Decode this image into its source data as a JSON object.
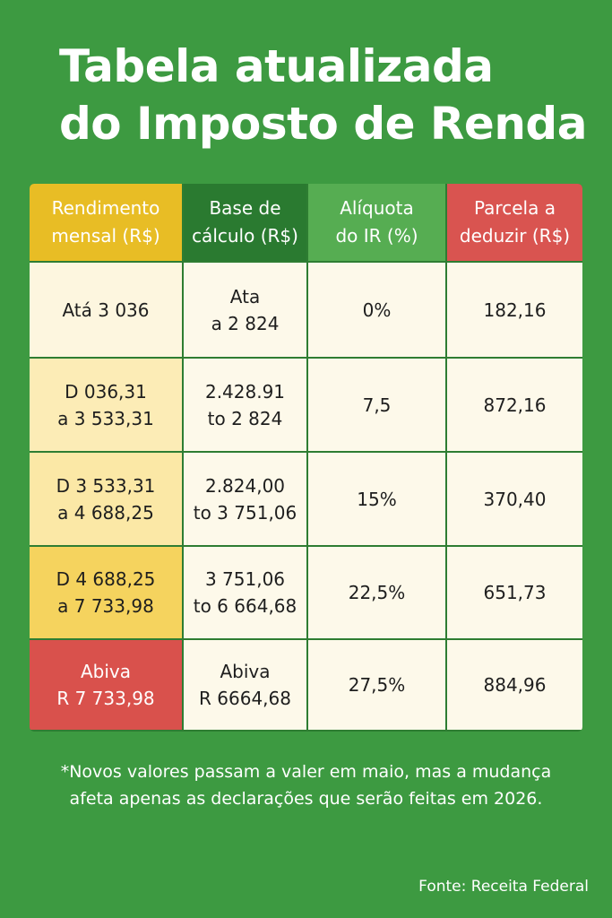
{
  "title": {
    "line1": "Tabela atualizada",
    "line2": "do Imposto de Renda"
  },
  "colors": {
    "background": "#3d9a41",
    "header_rendimento": "#e8bd25",
    "header_base": "#2a7a30",
    "header_aliquota": "#56ad52",
    "header_parcela": "#d95450"
  },
  "table": {
    "headers": [
      {
        "line1": "Rendimento",
        "line2": "mensal (R$)"
      },
      {
        "line1": "Base de",
        "line2": "cálculo (R$)"
      },
      {
        "line1": "Alíquota",
        "line2": "do IR (%)"
      },
      {
        "line1": "Parcela a",
        "line2": "deduzir (R$)"
      }
    ],
    "rows": [
      {
        "rendimento": {
          "line1": "Atá 3 036",
          "line2": ""
        },
        "base": {
          "line1": "Ata",
          "line2": "a 2 824"
        },
        "aliquota": "0%",
        "parcela": "182,16"
      },
      {
        "rendimento": {
          "line1": "D 036,31",
          "line2": "a 3 533,31"
        },
        "base": {
          "line1": "2.428.91",
          "line2": "to 2 824"
        },
        "aliquota": "7,5",
        "parcela": "872,16"
      },
      {
        "rendimento": {
          "line1": "D 3 533,31",
          "line2": "a 4 688,25"
        },
        "base": {
          "line1": "2.824,00",
          "line2": "to 3 751,06"
        },
        "aliquota": "15%",
        "parcela": "370,40"
      },
      {
        "rendimento": {
          "line1": "D 4 688,25",
          "line2": "a 7 733,98"
        },
        "base": {
          "line1": "3 751,06",
          "line2": "to 6 664,68"
        },
        "aliquota": "22,5%",
        "parcela": "651,73"
      },
      {
        "rendimento": {
          "line1": "Abiva",
          "line2": "R 7 733,98"
        },
        "base": {
          "line1": "Abiva",
          "line2": "R 6664,68"
        },
        "aliquota": "27,5%",
        "parcela": "884,96"
      }
    ]
  },
  "footnote": {
    "line1": "*Novos valores passam a valer em maio, mas a mudança",
    "line2": "afeta apenas as declarações que serão feitas em 2026."
  },
  "source": "Fonte: Receita Federal"
}
